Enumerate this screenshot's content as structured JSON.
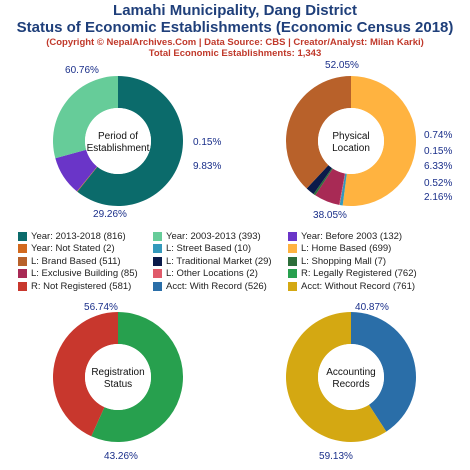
{
  "header": {
    "title_line1": "Lamahi Municipality, Dang District",
    "title_line2": "Status of Economic Establishments (Economic Census 2018)",
    "copyright": "(Copyright © NepalArchives.Com | Data Source: CBS | Creator/Analyst: Milan Karki)",
    "total": "Total Economic Establishments: 1,343"
  },
  "chart_data": [
    {
      "type": "pie",
      "center_label": [
        "Period of",
        "Establishment"
      ],
      "slices": [
        {
          "label": "Year: 2013-2018",
          "value": 816,
          "percent": "60.76%",
          "color": "#0b6b6b"
        },
        {
          "label": "Year: Not Stated",
          "value": 2,
          "percent": "0.15%",
          "color": "#d2691e"
        },
        {
          "label": "Year: Before 2003",
          "value": 132,
          "percent": "9.83%",
          "color": "#6a35c8"
        },
        {
          "label": "Year: 2003-2013",
          "value": 393,
          "percent": "29.26%",
          "color": "#66cc99"
        }
      ]
    },
    {
      "type": "pie",
      "center_label": [
        "Physical",
        "Location"
      ],
      "slices": [
        {
          "label": "L: Home Based",
          "value": 699,
          "percent": "52.05%",
          "color": "#ffb340"
        },
        {
          "label": "L: Street Based",
          "value": 10,
          "percent": "0.74%",
          "color": "#3399bb"
        },
        {
          "label": "L: Other Locations",
          "value": 2,
          "percent": "0.15%",
          "color": "#e05a6a"
        },
        {
          "label": "L: Exclusive Building",
          "value": 85,
          "percent": "6.33%",
          "color": "#a82a55"
        },
        {
          "label": "L: Shopping Mall",
          "value": 7,
          "percent": "0.52%",
          "color": "#2d6e3a"
        },
        {
          "label": "L: Traditional Market",
          "value": 29,
          "percent": "2.16%",
          "color": "#0a1a4a"
        },
        {
          "label": "L: Brand Based",
          "value": 511,
          "percent": "38.05%",
          "color": "#b8612a"
        }
      ]
    },
    {
      "type": "pie",
      "center_label": [
        "Registration",
        "Status"
      ],
      "slices": [
        {
          "label": "R: Legally Registered",
          "value": 762,
          "percent": "56.74%",
          "color": "#27a04e"
        },
        {
          "label": "R: Not Registered",
          "value": 581,
          "percent": "43.26%",
          "color": "#c8372d"
        }
      ]
    },
    {
      "type": "pie",
      "center_label": [
        "Accounting",
        "Records"
      ],
      "slices": [
        {
          "label": "Acct: With Record",
          "value": 526,
          "percent": "40.87%",
          "color": "#2a6ea8"
        },
        {
          "label": "Acct: Without Record",
          "value": 761,
          "percent": "59.13%",
          "color": "#d4a812"
        }
      ]
    }
  ],
  "legend": [
    [
      {
        "text": "Year: 2013-2018 (816)",
        "color": "#0b6b6b"
      },
      {
        "text": "Year: 2003-2013 (393)",
        "color": "#66cc99"
      },
      {
        "text": "Year: Before 2003 (132)",
        "color": "#6a35c8"
      }
    ],
    [
      {
        "text": "Year: Not Stated (2)",
        "color": "#d2691e"
      },
      {
        "text": "L: Street Based (10)",
        "color": "#3399bb"
      },
      {
        "text": "L: Home Based (699)",
        "color": "#ffb340"
      }
    ],
    [
      {
        "text": "L: Brand Based (511)",
        "color": "#b8612a"
      },
      {
        "text": "L: Traditional Market (29)",
        "color": "#0a1a4a"
      },
      {
        "text": "L: Shopping Mall (7)",
        "color": "#2d6e3a"
      }
    ],
    [
      {
        "text": "L: Exclusive Building (85)",
        "color": "#a82a55"
      },
      {
        "text": "L: Other Locations (2)",
        "color": "#e05a6a"
      },
      {
        "text": "R: Legally Registered (762)",
        "color": "#27a04e"
      }
    ],
    [
      {
        "text": "R: Not Registered (581)",
        "color": "#c8372d"
      },
      {
        "text": "Acct: With Record (526)",
        "color": "#2a6ea8"
      },
      {
        "text": "Acct: Without Record (761)",
        "color": "#d4a812"
      }
    ]
  ]
}
